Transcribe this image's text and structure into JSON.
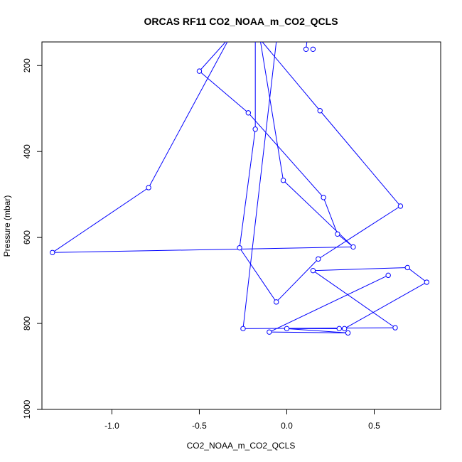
{
  "chart_data": {
    "type": "line",
    "title": "ORCAS RF11 CO2_NOAA_m_CO2_QCLS",
    "xlabel": "CO2_NOAA_m_CO2_QCLS",
    "ylabel": "Pressure (mbar)",
    "xlim": [
      -1.4,
      0.88
    ],
    "ylim": [
      1000,
      145
    ],
    "y_reversed": true,
    "x_ticks": [
      -1.0,
      -0.5,
      0.0,
      0.5
    ],
    "x_tick_labels": [
      "-1.0",
      "-0.5",
      "0.0",
      "0.5"
    ],
    "y_ticks": [
      200,
      400,
      600,
      800,
      1000
    ],
    "y_tick_labels": [
      "200",
      "400",
      "600",
      "800",
      "1000"
    ],
    "grid": false,
    "color": "#0000ff",
    "points": [
      {
        "x": 0.11,
        "y": 162
      },
      {
        "x": 0.15,
        "y": 162
      },
      {
        "x": -0.5,
        "y": 213
      },
      {
        "x": -0.22,
        "y": 310
      },
      {
        "x": -0.18,
        "y": 348
      },
      {
        "x": 0.19,
        "y": 305
      },
      {
        "x": 0.65,
        "y": 527
      },
      {
        "x": -0.02,
        "y": 467
      },
      {
        "x": 0.21,
        "y": 507
      },
      {
        "x": 0.29,
        "y": 592
      },
      {
        "x": 0.38,
        "y": 622
      },
      {
        "x": -0.27,
        "y": 624
      },
      {
        "x": -1.34,
        "y": 635
      },
      {
        "x": -0.79,
        "y": 484
      },
      {
        "x": 0.18,
        "y": 650
      },
      {
        "x": 0.15,
        "y": 677
      },
      {
        "x": 0.69,
        "y": 670
      },
      {
        "x": 0.8,
        "y": 704
      },
      {
        "x": 0.58,
        "y": 688
      },
      {
        "x": -0.06,
        "y": 750
      },
      {
        "x": -0.25,
        "y": 812
      },
      {
        "x": -0.1,
        "y": 820
      },
      {
        "x": 0.0,
        "y": 812
      },
      {
        "x": 0.3,
        "y": 812
      },
      {
        "x": 0.33,
        "y": 812
      },
      {
        "x": 0.62,
        "y": 810
      },
      {
        "x": 0.35,
        "y": 822
      }
    ],
    "segments": [
      [
        [
          -0.35,
          145
        ],
        [
          -0.5,
          213
        ]
      ],
      [
        [
          -0.5,
          213
        ],
        [
          -0.22,
          310
        ]
      ],
      [
        [
          -0.22,
          310
        ],
        [
          0.21,
          507
        ]
      ],
      [
        [
          0.21,
          507
        ],
        [
          0.29,
          592
        ]
      ],
      [
        [
          0.29,
          592
        ],
        [
          0.38,
          622
        ]
      ],
      [
        [
          0.38,
          622
        ],
        [
          -1.34,
          635
        ]
      ],
      [
        [
          -1.34,
          635
        ],
        [
          -0.79,
          484
        ]
      ],
      [
        [
          -0.79,
          484
        ],
        [
          -0.34,
          145
        ]
      ],
      [
        [
          -0.18,
          145
        ],
        [
          -0.18,
          348
        ]
      ],
      [
        [
          -0.18,
          348
        ],
        [
          -0.27,
          624
        ]
      ],
      [
        [
          -0.27,
          624
        ],
        [
          -0.06,
          750
        ]
      ],
      [
        [
          -0.06,
          750
        ],
        [
          0.18,
          650
        ]
      ],
      [
        [
          0.18,
          650
        ],
        [
          0.65,
          527
        ]
      ],
      [
        [
          0.65,
          527
        ],
        [
          0.19,
          305
        ]
      ],
      [
        [
          0.19,
          305
        ],
        [
          -0.14,
          145
        ]
      ],
      [
        [
          -0.15,
          145
        ],
        [
          -0.02,
          467
        ]
      ],
      [
        [
          -0.02,
          467
        ],
        [
          0.38,
          622
        ]
      ],
      [
        [
          -0.06,
          145
        ],
        [
          -0.25,
          812
        ]
      ],
      [
        [
          -0.25,
          812
        ],
        [
          0.62,
          810
        ]
      ],
      [
        [
          0.62,
          810
        ],
        [
          0.15,
          677
        ]
      ],
      [
        [
          0.15,
          677
        ],
        [
          0.69,
          670
        ]
      ],
      [
        [
          0.69,
          670
        ],
        [
          0.8,
          704
        ]
      ],
      [
        [
          0.8,
          704
        ],
        [
          0.33,
          812
        ]
      ],
      [
        [
          0.33,
          812
        ],
        [
          0.3,
          812
        ]
      ],
      [
        [
          0.3,
          812
        ],
        [
          0.0,
          812
        ]
      ],
      [
        [
          0.0,
          812
        ],
        [
          0.35,
          822
        ]
      ],
      [
        [
          0.35,
          822
        ],
        [
          -0.1,
          820
        ]
      ],
      [
        [
          -0.1,
          820
        ],
        [
          0.58,
          688
        ]
      ],
      [
        [
          0.115,
          145
        ],
        [
          0.11,
          162
        ]
      ]
    ]
  }
}
